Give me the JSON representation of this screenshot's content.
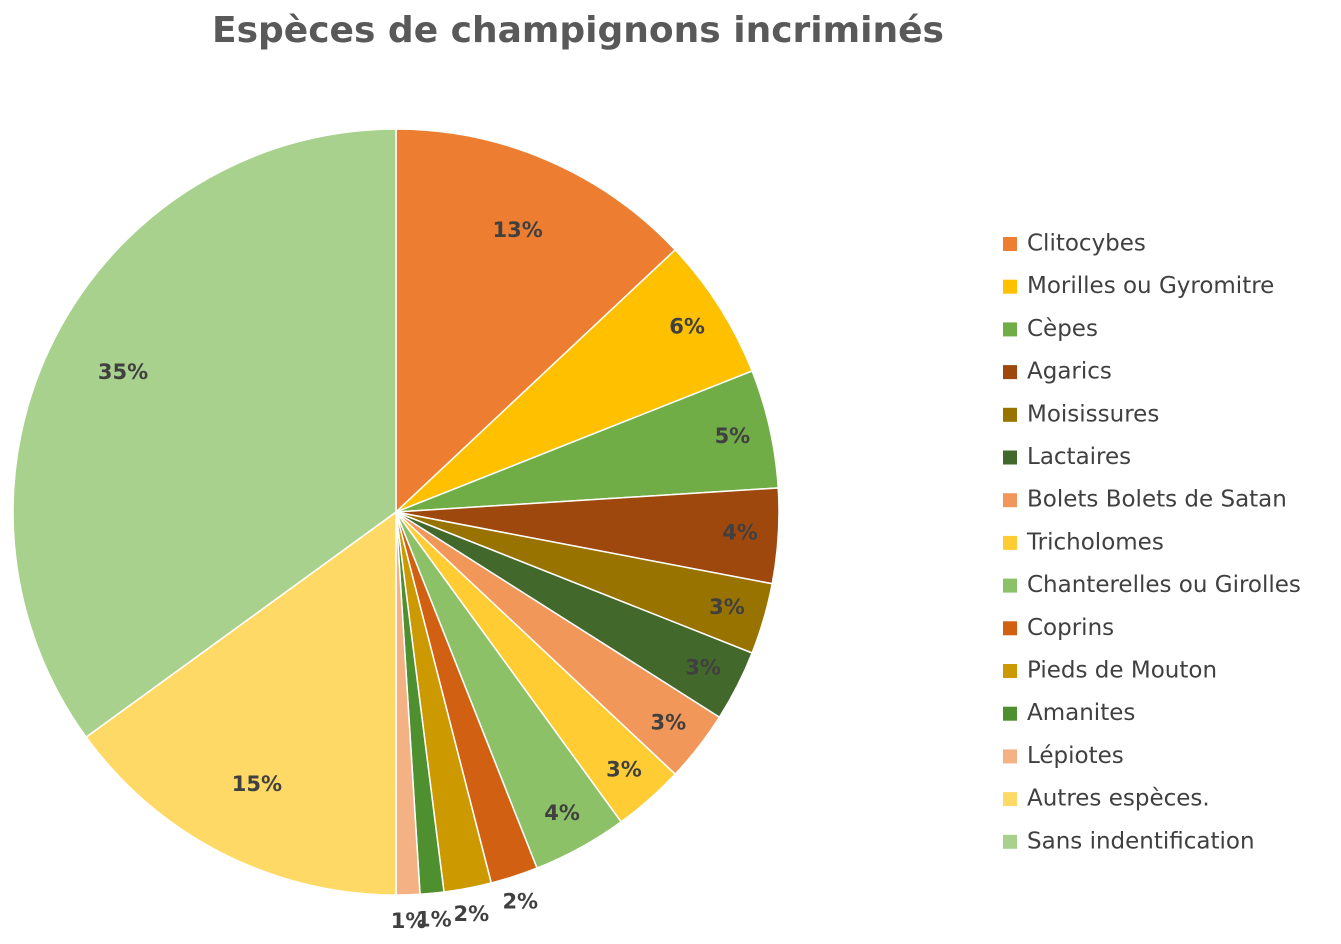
{
  "chart_data": {
    "type": "pie",
    "title": "Espèces de champignons incriminés",
    "categories": [
      "Clitocybes",
      "Morilles ou Gyromitre",
      "Cèpes",
      "Agarics",
      "Moisissures",
      "Lactaires",
      "Bolets Bolets de Satan",
      "Tricholomes",
      "Chanterelles ou Girolles",
      "Coprins",
      "Pieds de Mouton",
      "Amanites",
      "Lépiotes",
      "Autres espèces.",
      "Sans indentification"
    ],
    "values": [
      13,
      6,
      5,
      4,
      3,
      3,
      3,
      3,
      4,
      2,
      2,
      1,
      1,
      15,
      35
    ],
    "value_labels": [
      "13%",
      "6%",
      "5%",
      "4%",
      "3%",
      "3%",
      "3%",
      "3%",
      "4%",
      "2%",
      "2%",
      "1%",
      "1%",
      "15%",
      "35%"
    ],
    "colors": [
      "#ED7D31",
      "#FFC000",
      "#70AD47",
      "#9E480E",
      "#997300",
      "#43682B",
      "#F1975A",
      "#FFCD33",
      "#8CC168",
      "#D26012",
      "#CC9A00",
      "#4E8F2F",
      "#F4B183",
      "#FFD966",
      "#A9D18E"
    ],
    "legend": "right"
  }
}
